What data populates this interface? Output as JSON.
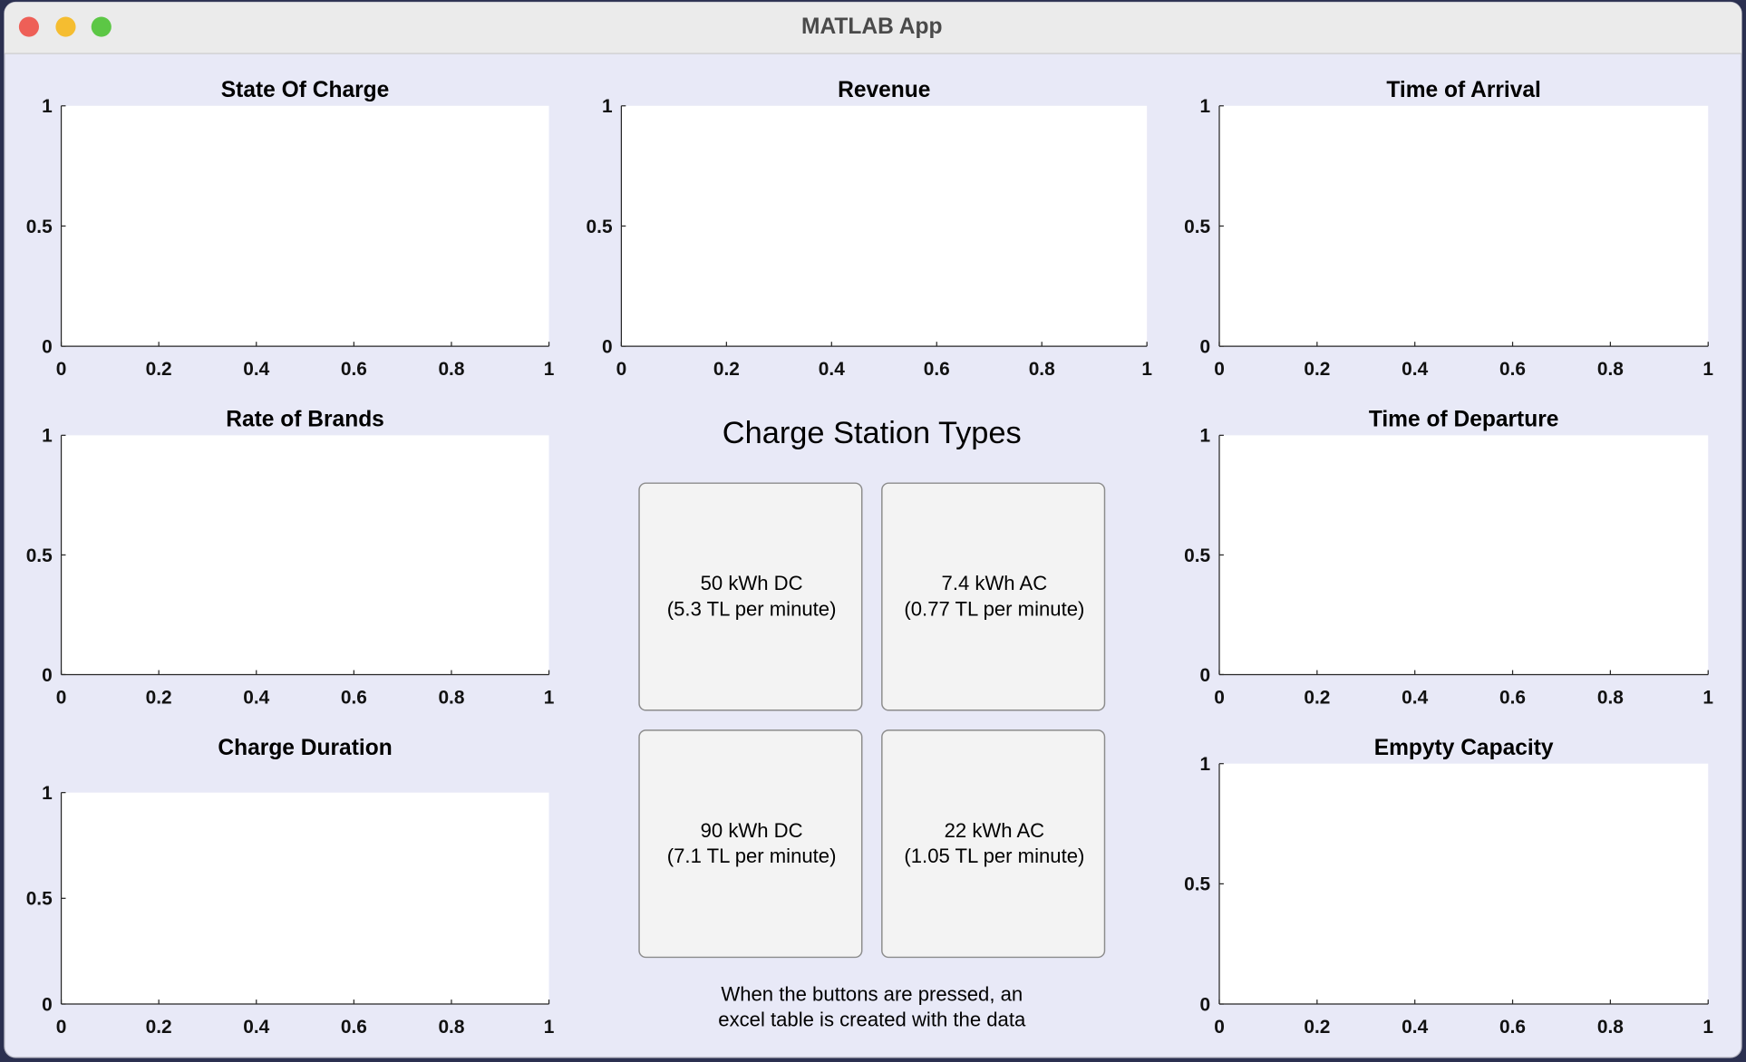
{
  "window": {
    "title": "MATLAB App"
  },
  "axes": [
    {
      "title": "State Of Charge",
      "xlim": [
        0,
        1
      ],
      "ylim": [
        0,
        1
      ],
      "xticks": [
        0,
        0.2,
        0.4,
        0.6,
        0.8,
        1
      ],
      "yticks": [
        0,
        0.5,
        1
      ]
    },
    {
      "title": "Revenue",
      "xlim": [
        0,
        1
      ],
      "ylim": [
        0,
        1
      ],
      "xticks": [
        0,
        0.2,
        0.4,
        0.6,
        0.8,
        1
      ],
      "yticks": [
        0,
        0.5,
        1
      ]
    },
    {
      "title": "Time of Arrival",
      "xlim": [
        0,
        1
      ],
      "ylim": [
        0,
        1
      ],
      "xticks": [
        0,
        0.2,
        0.4,
        0.6,
        0.8,
        1
      ],
      "yticks": [
        0,
        0.5,
        1
      ]
    },
    {
      "title": "Rate of Brands",
      "xlim": [
        0,
        1
      ],
      "ylim": [
        0,
        1
      ],
      "xticks": [
        0,
        0.2,
        0.4,
        0.6,
        0.8,
        1
      ],
      "yticks": [
        0,
        0.5,
        1
      ]
    },
    {
      "title": "Time of Departure",
      "xlim": [
        0,
        1
      ],
      "ylim": [
        0,
        1
      ],
      "xticks": [
        0,
        0.2,
        0.4,
        0.6,
        0.8,
        1
      ],
      "yticks": [
        0,
        0.5,
        1
      ]
    },
    {
      "title": "Charge Duration",
      "xlim": [
        0,
        1
      ],
      "ylim": [
        0,
        1
      ],
      "xticks": [
        0,
        0.2,
        0.4,
        0.6,
        0.8,
        1
      ],
      "yticks": [
        0,
        0.5,
        1
      ]
    },
    {
      "title": "Empyty Capacity",
      "xlim": [
        0,
        1
      ],
      "ylim": [
        0,
        1
      ],
      "xticks": [
        0,
        0.2,
        0.4,
        0.6,
        0.8,
        1
      ],
      "yticks": [
        0,
        0.5,
        1
      ]
    }
  ],
  "panel": {
    "title": "Charge Station Types",
    "buttons": [
      {
        "lines": [
          "50 kWh DC",
          "(5.3 TL per minute)"
        ]
      },
      {
        "lines": [
          "7.4 kWh AC",
          "(0.77 TL per minute)"
        ]
      },
      {
        "lines": [
          "90 kWh DC",
          "(7.1 TL per minute)"
        ]
      },
      {
        "lines": [
          "22 kWh AC",
          "(1.05 TL per minute)"
        ]
      }
    ]
  },
  "note": {
    "lines": [
      "When the buttons are pressed, an",
      "excel table is created with the data"
    ]
  }
}
